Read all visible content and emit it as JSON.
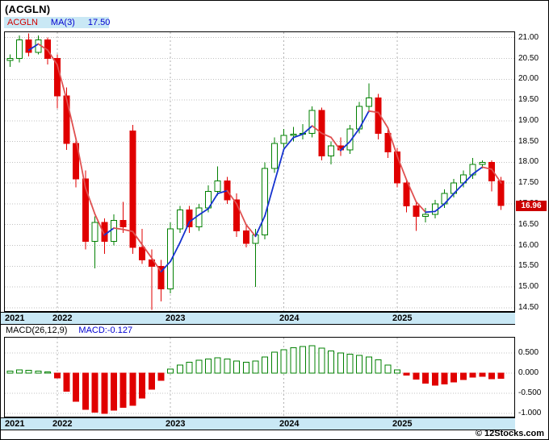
{
  "header": {
    "title": "(ACGLN)"
  },
  "legend": {
    "symbol": "ACGLN",
    "ma_label": "MA(3)",
    "ma_value": "17.50"
  },
  "price_badge": "16.96",
  "macd_header": {
    "label": "MACD(26,12,9)",
    "value": "MACD:-0.127"
  },
  "footer": {
    "copyright": "© 12Stocks.com"
  },
  "colors": {
    "up": "#018001",
    "down": "#e00000",
    "ma_rising": "#1633cf",
    "ma_falling": "#e05050",
    "axis_band": "#c9e8f5",
    "grid": "#c0c0c0",
    "year_grid": "#b0b0b0",
    "badge_bg": "#cc0000",
    "legend_symbol": "#d00000",
    "legend_ma": "#0000d0",
    "macd_value_text": "#0000d0"
  },
  "chart_data": [
    {
      "type": "candlestick",
      "symbol": "ACGLN",
      "overlay": "MA(3) moving average, drawn blue when rising and red when falling",
      "ma_last": 17.5,
      "last_close": 16.96,
      "ylim": [
        14.4,
        21.15
      ],
      "y_ticks": [
        "21.00",
        "20.50",
        "20.00",
        "19.50",
        "19.00",
        "18.50",
        "18.00",
        "17.50",
        "17.00",
        "16.50",
        "16.00",
        "15.50",
        "15.00",
        "14.50"
      ],
      "year_ticks": [
        {
          "label": "2021",
          "index": 0
        },
        {
          "label": "2022",
          "index": 5
        },
        {
          "label": "2023",
          "index": 17
        },
        {
          "label": "2024",
          "index": 29
        },
        {
          "label": "2025",
          "index": 41
        }
      ],
      "candles_ohlc": [
        [
          20.45,
          20.6,
          20.3,
          20.5
        ],
        [
          20.5,
          21.05,
          20.4,
          20.95
        ],
        [
          20.95,
          21.1,
          20.55,
          20.65
        ],
        [
          20.65,
          21.05,
          20.6,
          20.95
        ],
        [
          20.95,
          21.0,
          20.35,
          20.5
        ],
        [
          20.5,
          20.6,
          19.3,
          19.6
        ],
        [
          19.6,
          19.8,
          18.3,
          18.45
        ],
        [
          18.45,
          18.6,
          17.4,
          17.6
        ],
        [
          17.6,
          17.8,
          15.9,
          16.1
        ],
        [
          16.1,
          16.7,
          15.45,
          16.55
        ],
        [
          16.55,
          16.65,
          15.8,
          16.1
        ],
        [
          16.1,
          16.75,
          16.0,
          16.6
        ],
        [
          16.6,
          17.05,
          16.3,
          16.45
        ],
        [
          18.75,
          18.9,
          15.8,
          15.95
        ],
        [
          15.95,
          16.4,
          15.55,
          15.65
        ],
        [
          15.65,
          15.9,
          14.45,
          15.5
        ],
        [
          15.5,
          15.65,
          14.65,
          14.95
        ],
        [
          14.95,
          16.55,
          14.85,
          16.4
        ],
        [
          16.4,
          16.95,
          16.3,
          16.85
        ],
        [
          16.85,
          16.95,
          16.3,
          16.45
        ],
        [
          16.45,
          17.0,
          16.35,
          16.9
        ],
        [
          16.9,
          17.45,
          16.8,
          17.3
        ],
        [
          17.3,
          17.9,
          17.2,
          17.55
        ],
        [
          17.55,
          17.65,
          17.0,
          17.1
        ],
        [
          17.1,
          17.25,
          16.2,
          16.35
        ],
        [
          16.35,
          16.5,
          15.95,
          16.05
        ],
        [
          16.05,
          16.4,
          15.0,
          16.25
        ],
        [
          16.25,
          18.0,
          16.15,
          17.85
        ],
        [
          17.85,
          18.6,
          17.75,
          18.45
        ],
        [
          18.45,
          18.8,
          18.35,
          18.65
        ],
        [
          18.65,
          18.85,
          18.5,
          18.68
        ],
        [
          18.68,
          18.92,
          18.55,
          18.7
        ],
        [
          18.7,
          19.35,
          18.6,
          19.25
        ],
        [
          19.25,
          19.32,
          18.05,
          18.15
        ],
        [
          18.15,
          18.5,
          17.95,
          18.4
        ],
        [
          18.4,
          18.6,
          18.15,
          18.3
        ],
        [
          18.3,
          18.9,
          18.2,
          18.8
        ],
        [
          18.8,
          19.45,
          18.7,
          19.35
        ],
        [
          19.35,
          19.9,
          19.2,
          19.55
        ],
        [
          19.55,
          19.65,
          18.55,
          18.7
        ],
        [
          18.7,
          18.8,
          18.1,
          18.25
        ],
        [
          18.25,
          18.35,
          17.4,
          17.5
        ],
        [
          17.5,
          17.6,
          16.8,
          16.95
        ],
        [
          16.95,
          17.05,
          16.35,
          16.7
        ],
        [
          16.7,
          16.9,
          16.55,
          16.75
        ],
        [
          16.75,
          17.1,
          16.65,
          17.0
        ],
        [
          17.0,
          17.35,
          16.9,
          17.25
        ],
        [
          17.25,
          17.6,
          17.15,
          17.5
        ],
        [
          17.5,
          17.8,
          17.4,
          17.7
        ],
        [
          17.7,
          18.1,
          17.6,
          17.95
        ],
        [
          17.95,
          18.05,
          17.85,
          18.0
        ],
        [
          18.0,
          18.05,
          17.3,
          17.55
        ],
        [
          17.55,
          17.65,
          16.85,
          16.96
        ]
      ]
    },
    {
      "type": "bar",
      "title": "MACD(26,12,9)",
      "last_value": -0.127,
      "ylim": [
        -1.1,
        0.9
      ],
      "y_ticks": [
        "0.500",
        "0.000",
        "-0.500",
        "-1.000"
      ],
      "values": [
        0.05,
        0.08,
        0.07,
        0.05,
        0.03,
        -0.12,
        -0.45,
        -0.7,
        -0.9,
        -0.97,
        -1.0,
        -0.92,
        -0.85,
        -0.8,
        -0.62,
        -0.4,
        -0.18,
        0.1,
        0.2,
        0.27,
        0.32,
        0.35,
        0.38,
        0.35,
        0.3,
        0.27,
        0.3,
        0.4,
        0.52,
        0.58,
        0.63,
        0.66,
        0.68,
        0.62,
        0.55,
        0.5,
        0.47,
        0.44,
        0.4,
        0.33,
        0.2,
        0.08,
        -0.05,
        -0.15,
        -0.25,
        -0.3,
        -0.27,
        -0.22,
        -0.16,
        -0.1,
        -0.08,
        -0.14,
        -0.127
      ]
    }
  ]
}
